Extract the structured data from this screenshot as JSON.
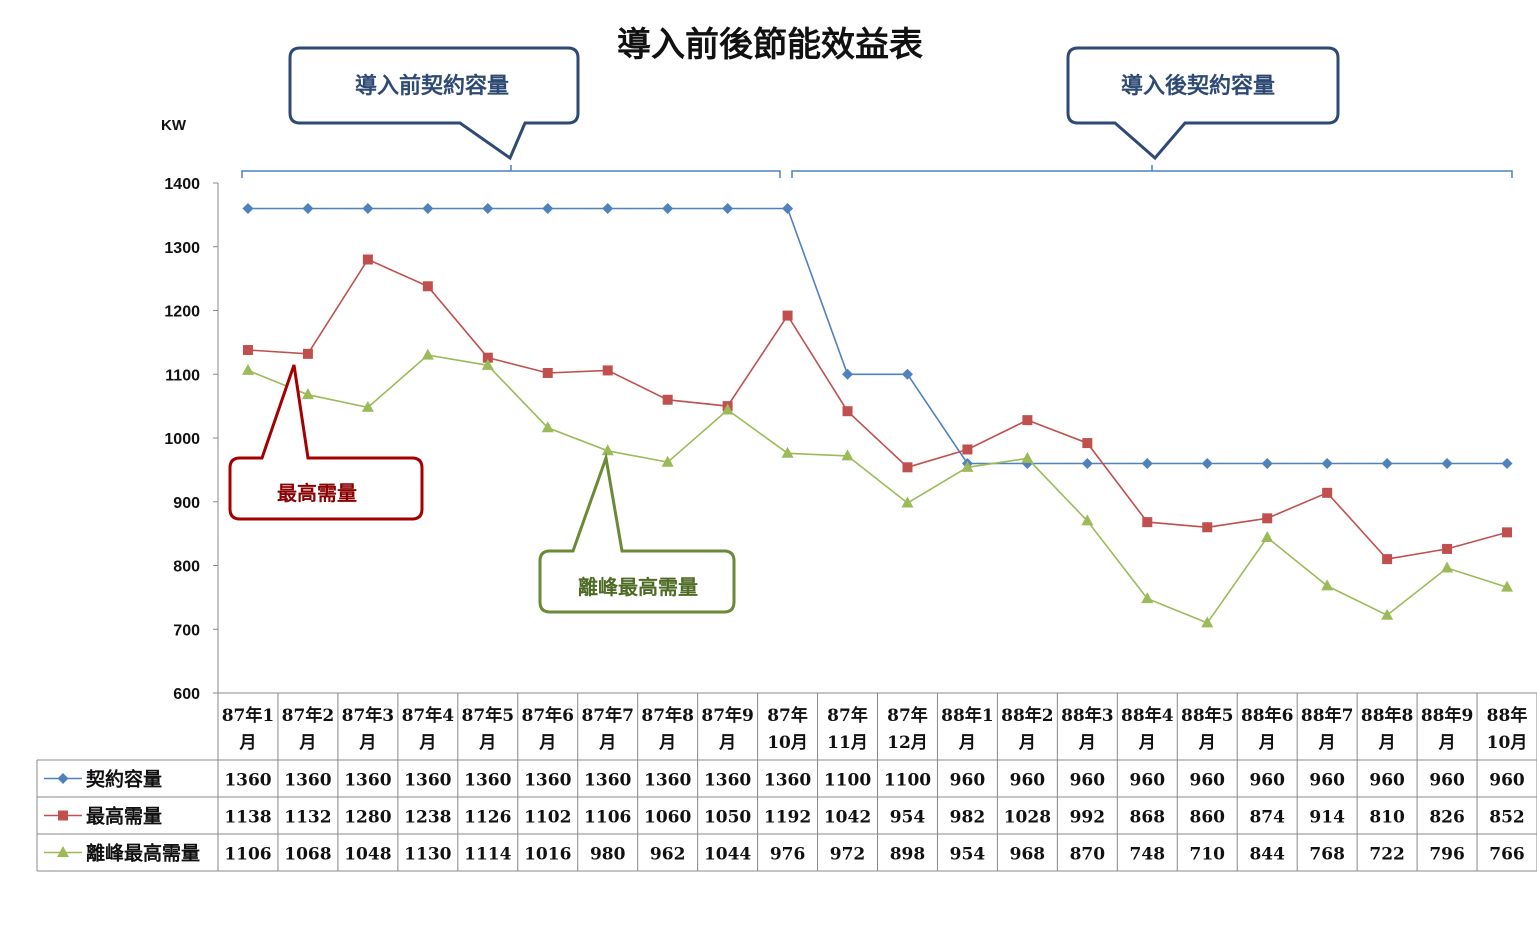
{
  "title": "導入前後節能效益表",
  "unit_label": "KW",
  "callouts": {
    "before": "導入前契約容量",
    "after": "導入後契約容量",
    "peak": "最高需量",
    "offpeak": "離峰最高需量"
  },
  "colors": {
    "contract": "#4f81bd",
    "peak": "#c0504d",
    "offpeak": "#9bbb59",
    "callout_blue": "#2e4a74",
    "callout_red": "#a50000",
    "callout_green": "#6b8a35"
  },
  "chart_data": {
    "type": "line",
    "title": "導入前後節能效益表",
    "ylabel": "KW",
    "ylim": [
      600,
      1400
    ],
    "yticks": [
      600,
      700,
      800,
      900,
      1000,
      1100,
      1200,
      1300,
      1400
    ],
    "categories": [
      [
        "87年1",
        "月"
      ],
      [
        "87年2",
        "月"
      ],
      [
        "87年3",
        "月"
      ],
      [
        "87年4",
        "月"
      ],
      [
        "87年5",
        "月"
      ],
      [
        "87年6",
        "月"
      ],
      [
        "87年7",
        "月"
      ],
      [
        "87年8",
        "月"
      ],
      [
        "87年9",
        "月"
      ],
      [
        "87年",
        "10月"
      ],
      [
        "87年",
        "11月"
      ],
      [
        "87年",
        "12月"
      ],
      [
        "88年1",
        "月"
      ],
      [
        "88年2",
        "月"
      ],
      [
        "88年3",
        "月"
      ],
      [
        "88年4",
        "月"
      ],
      [
        "88年5",
        "月"
      ],
      [
        "88年6",
        "月"
      ],
      [
        "88年7",
        "月"
      ],
      [
        "88年8",
        "月"
      ],
      [
        "88年9",
        "月"
      ],
      [
        "88年",
        "10月"
      ]
    ],
    "series": [
      {
        "name": "契約容量",
        "marker": "diamond",
        "color": "#4f81bd",
        "values": [
          1360,
          1360,
          1360,
          1360,
          1360,
          1360,
          1360,
          1360,
          1360,
          1360,
          1100,
          1100,
          960,
          960,
          960,
          960,
          960,
          960,
          960,
          960,
          960,
          960
        ]
      },
      {
        "name": "最高需量",
        "marker": "square",
        "color": "#c0504d",
        "values": [
          1138,
          1132,
          1280,
          1238,
          1126,
          1102,
          1106,
          1060,
          1050,
          1192,
          1042,
          954,
          982,
          1028,
          992,
          868,
          860,
          874,
          914,
          810,
          826,
          852
        ]
      },
      {
        "name": "離峰最高需量",
        "marker": "triangle",
        "color": "#9bbb59",
        "values": [
          1106,
          1068,
          1048,
          1130,
          1114,
          1016,
          980,
          962,
          1044,
          976,
          972,
          898,
          954,
          968,
          870,
          748,
          710,
          844,
          768,
          722,
          796,
          766
        ]
      }
    ],
    "legend_position": "bottom-table",
    "grid": false
  }
}
